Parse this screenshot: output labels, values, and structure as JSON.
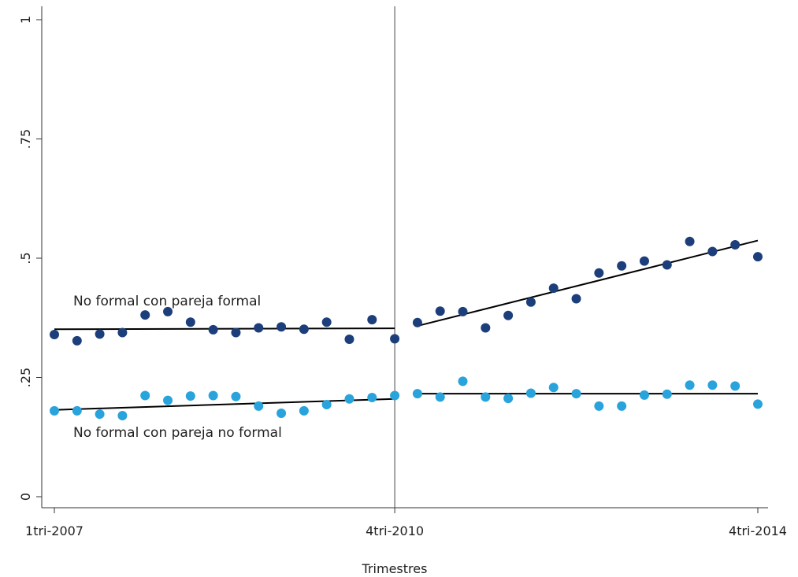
{
  "chart_data": {
    "type": "scatter",
    "xlabel": "Trimestres",
    "ylabel": "",
    "x_ticks": [
      "1tri-2007",
      "4tri-2010",
      "4tri-2014"
    ],
    "y_ticks": [
      "0",
      ".25",
      ".5",
      ".75",
      "1"
    ],
    "ylim": [
      0,
      1
    ],
    "grid": false,
    "x_periods": [
      "1tri-2007",
      "2tri-2007",
      "3tri-2007",
      "4tri-2007",
      "1tri-2008",
      "2tri-2008",
      "3tri-2008",
      "4tri-2008",
      "1tri-2009",
      "2tri-2009",
      "3tri-2009",
      "4tri-2009",
      "1tri-2010",
      "2tri-2010",
      "3tri-2010",
      "4tri-2010",
      "1tri-2011",
      "2tri-2011",
      "3tri-2011",
      "4tri-2011",
      "1tri-2012",
      "2tri-2012",
      "3tri-2012",
      "4tri-2012",
      "1tri-2013",
      "2tri-2013",
      "3tri-2013",
      "4tri-2013",
      "1tri-2014",
      "2tri-2014",
      "3tri-2014",
      "4tri-2014"
    ],
    "cutoff_period": "4tri-2010",
    "annotations": [
      "No formal con pareja formal",
      "No formal con pareja no formal"
    ],
    "series": [
      {
        "color": "#1c3f7c",
        "values": [
          0.34,
          0.327,
          0.341,
          0.344,
          0.381,
          0.388,
          0.366,
          0.35,
          0.344,
          0.354,
          0.356,
          0.351,
          0.366,
          0.33,
          0.371,
          0.331,
          0.365,
          0.389,
          0.388,
          0.354,
          0.38,
          0.408,
          0.437,
          0.415,
          0.469,
          0.484,
          0.494,
          0.486,
          0.535,
          0.514,
          0.528,
          0.503
        ],
        "fits": [
          {
            "from": "1tri-2007",
            "to": "4tri-2010",
            "y": [
              0.351,
              0.353
            ]
          },
          {
            "from": "1tri-2011",
            "to": "4tri-2014",
            "y": [
              0.358,
              0.537
            ]
          }
        ]
      },
      {
        "color": "#29a3dc",
        "values": [
          0.18,
          0.18,
          0.173,
          0.17,
          0.212,
          0.202,
          0.211,
          0.212,
          0.21,
          0.19,
          0.175,
          0.18,
          0.193,
          0.205,
          0.208,
          0.212,
          0.216,
          0.209,
          0.242,
          0.209,
          0.206,
          0.217,
          0.229,
          0.216,
          0.19,
          0.19,
          0.213,
          0.215,
          0.234,
          0.234,
          0.232,
          0.194
        ],
        "fits": [
          {
            "from": "1tri-2007",
            "to": "4tri-2010",
            "y": [
              0.182,
              0.205
            ]
          },
          {
            "from": "1tri-2011",
            "to": "4tri-2014",
            "y": [
              0.216,
              0.216
            ]
          }
        ]
      }
    ]
  }
}
